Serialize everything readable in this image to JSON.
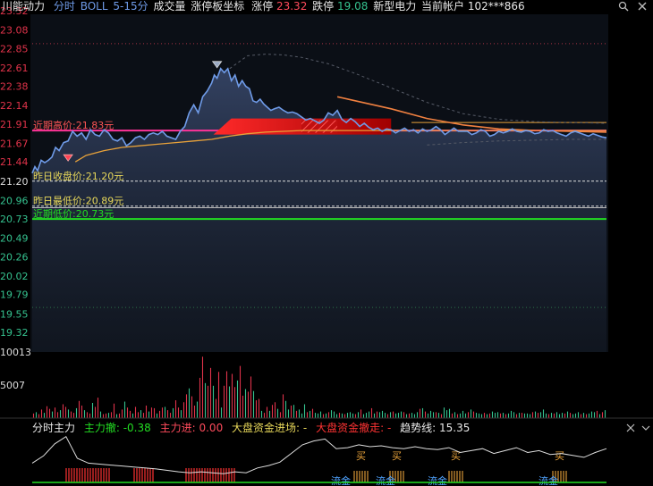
{
  "header": {
    "stock": "川能动力",
    "mode": "分时",
    "indicator": "BOLL",
    "period": "5-15分",
    "volume_label": "成交量",
    "limit_tool": "涨停板坐标",
    "limit_up_label": "涨停",
    "limit_up_value": "23.32",
    "limit_down_label": "跌停",
    "limit_down_value": "19.08",
    "sector": "新型电力",
    "account": "当前帐户 102***866"
  },
  "colors": {
    "bg": "#000000",
    "price": "#6f9be8",
    "avg": "#e8a23a",
    "up": "#e0334a",
    "down": "#35c28f",
    "yellow": "#e8d85a",
    "green": "#22dd22",
    "pink": "#ff3399",
    "white": "#dddddd"
  },
  "chart_data": {
    "type": "line",
    "y_ticks": [
      {
        "v": 23.32,
        "label": "23.32"
      },
      {
        "v": 23.08,
        "label": "23.08"
      },
      {
        "v": 22.85,
        "label": "22.85"
      },
      {
        "v": 22.61,
        "label": "22.61"
      },
      {
        "v": 22.38,
        "label": "22.38"
      },
      {
        "v": 22.14,
        "label": "22.14"
      },
      {
        "v": 21.91,
        "label": "21.91"
      },
      {
        "v": 21.67,
        "label": "21.67"
      },
      {
        "v": 21.44,
        "label": "21.44"
      },
      {
        "v": 21.2,
        "label": "21.20"
      },
      {
        "v": 20.96,
        "label": "20.96"
      },
      {
        "v": 20.73,
        "label": "20.73"
      },
      {
        "v": 20.49,
        "label": "20.49"
      },
      {
        "v": 20.26,
        "label": "20.26"
      },
      {
        "v": 20.02,
        "label": "20.02"
      },
      {
        "v": 19.79,
        "label": "19.79"
      },
      {
        "v": 19.55,
        "label": "19.55"
      },
      {
        "v": 19.32,
        "label": "19.32"
      }
    ],
    "ylim": [
      19.32,
      23.32
    ],
    "hlines": [
      {
        "label": "近期高价:21.83元",
        "value": 21.83,
        "color": "#ff3399"
      },
      {
        "label": "昨日收盘价:21.20元",
        "value": 21.2,
        "color": "#dddddd"
      },
      {
        "label": "昨日最低价:20.89元",
        "value": 20.89,
        "color": "#dddddd"
      },
      {
        "label": "近期低价:20.73元",
        "value": 20.73,
        "color": "#22dd22"
      }
    ],
    "series": [
      {
        "name": "price",
        "x": [
          0,
          3,
          6,
          10,
          14,
          18,
          22,
          26,
          30,
          35,
          40,
          45,
          50,
          55,
          60,
          65,
          70,
          75,
          80,
          85,
          90,
          95,
          100,
          105,
          110,
          115,
          120,
          125,
          130,
          135,
          140,
          145,
          150,
          155,
          160,
          165,
          170,
          175,
          180,
          185,
          190,
          195,
          200,
          203,
          206,
          210,
          214,
          218,
          222,
          226,
          230,
          234,
          238,
          242,
          246,
          250,
          254,
          258,
          262,
          266,
          270,
          275,
          280,
          285,
          290,
          295,
          300,
          305,
          310,
          315,
          320,
          325,
          330,
          335,
          340,
          345,
          350,
          355,
          360,
          365,
          370,
          375,
          380,
          385,
          390,
          395,
          400,
          405,
          410,
          415,
          420,
          425,
          430,
          435,
          440,
          445,
          450,
          455,
          460,
          465,
          470,
          475,
          480,
          485,
          490,
          495,
          500,
          505,
          510,
          515,
          520,
          525,
          530,
          535,
          540,
          545,
          550,
          555,
          560,
          565,
          570,
          575,
          580,
          585,
          590,
          595,
          600,
          605,
          610,
          615,
          620,
          625,
          630,
          635,
          640
        ],
        "values": [
          21.3,
          21.38,
          21.33,
          21.46,
          21.43,
          21.46,
          21.5,
          21.62,
          21.58,
          21.68,
          21.7,
          21.82,
          21.76,
          21.8,
          21.72,
          21.84,
          21.78,
          21.76,
          21.84,
          21.8,
          21.72,
          21.7,
          21.74,
          21.64,
          21.68,
          21.74,
          21.76,
          21.72,
          21.78,
          21.8,
          21.78,
          21.82,
          21.76,
          21.74,
          21.72,
          21.82,
          21.88,
          22.05,
          22.15,
          22.05,
          22.25,
          22.32,
          22.42,
          22.52,
          22.48,
          22.6,
          22.55,
          22.6,
          22.45,
          22.52,
          22.38,
          22.45,
          22.38,
          22.35,
          22.2,
          22.18,
          22.22,
          22.16,
          22.12,
          22.08,
          22.1,
          22.12,
          22.08,
          22.05,
          22.06,
          22.04,
          22.0,
          21.96,
          21.98,
          21.95,
          21.92,
          21.96,
          22.05,
          22.02,
          22.08,
          21.97,
          21.93,
          21.98,
          21.94,
          21.88,
          21.92,
          21.87,
          21.84,
          21.86,
          21.82,
          21.85,
          21.84,
          21.8,
          21.83,
          21.86,
          21.82,
          21.84,
          21.8,
          21.85,
          21.82,
          21.84,
          21.88,
          21.84,
          21.78,
          21.82,
          21.86,
          21.82,
          21.82,
          21.82,
          21.78,
          21.8,
          21.84,
          21.82,
          21.76,
          21.78,
          21.82,
          21.8,
          21.82,
          21.85,
          21.82,
          21.81,
          21.83,
          21.82,
          21.79,
          21.8,
          21.84,
          21.82,
          21.83,
          21.8,
          21.78,
          21.76,
          21.8,
          21.82,
          21.8,
          21.78,
          21.76,
          21.79,
          21.77,
          21.75,
          21.74
        ]
      },
      {
        "name": "avg",
        "x": [
          48,
          60,
          80,
          100,
          120,
          140,
          160,
          180,
          200,
          220,
          240,
          260,
          280,
          300,
          330,
          360,
          400,
          440,
          480,
          520,
          560,
          600,
          640
        ],
        "values": [
          21.44,
          21.52,
          21.58,
          21.62,
          21.64,
          21.66,
          21.68,
          21.7,
          21.72,
          21.76,
          21.79,
          21.81,
          21.82,
          21.83,
          21.83,
          21.83,
          21.83,
          21.83,
          21.83,
          21.83,
          21.83,
          21.83,
          21.83
        ]
      },
      {
        "name": "boll_up",
        "x": [
          220,
          240,
          260,
          280,
          300,
          330,
          360,
          400,
          440,
          480,
          520,
          560,
          600,
          640
        ],
        "values": [
          22.6,
          22.76,
          22.78,
          22.77,
          22.74,
          22.66,
          22.54,
          22.36,
          22.18,
          22.04,
          21.97,
          21.94,
          21.93,
          21.92
        ]
      },
      {
        "name": "boll_mid",
        "x": [
          340,
          360,
          400,
          440,
          480,
          520,
          560,
          600,
          640
        ],
        "values": [
          22.25,
          22.2,
          22.1,
          21.98,
          21.9,
          21.85,
          21.83,
          21.82,
          21.81
        ]
      },
      {
        "name": "boll_low",
        "x": [
          440,
          480,
          520,
          560,
          600,
          640
        ],
        "values": [
          21.65,
          21.68,
          21.7,
          21.71,
          21.72,
          21.72
        ]
      }
    ],
    "volume": {
      "y_ticks": [
        {
          "v": 10013,
          "label": "10013"
        },
        {
          "v": 5007,
          "label": "5007"
        }
      ],
      "ymax": 10013,
      "values": [
        700,
        900,
        600,
        1300,
        800,
        1800,
        1400,
        1000,
        1600,
        900,
        1200,
        2100,
        1700,
        1300,
        1000,
        800,
        1500,
        2600,
        1900,
        1200,
        900,
        700,
        2300,
        1700,
        3100,
        1000,
        600,
        700,
        800,
        900,
        2200,
        600,
        700,
        1300,
        2500,
        1600,
        1100,
        700,
        1700,
        900,
        1200,
        800,
        1900,
        1000,
        1600,
        1500,
        700,
        1100,
        1600,
        1700,
        1200,
        800,
        1500,
        2700,
        1600,
        1200,
        2400,
        3600,
        4500,
        3300,
        1900,
        2500,
        6100,
        9300,
        5300,
        4900,
        7600,
        4900,
        2900,
        7000,
        1600,
        4900,
        7100,
        4800,
        6700,
        4700,
        5700,
        7900,
        3400,
        4400,
        4000,
        6300,
        4100,
        2700,
        2900,
        1100,
        800,
        1700,
        1100,
        2000,
        2400,
        1400,
        900,
        3600,
        2600,
        1300,
        1900,
        2000,
        1100,
        1300,
        700,
        2100,
        900,
        1100,
        1400,
        800,
        700,
        1000,
        600,
        700,
        900,
        1200,
        1000,
        600,
        800,
        700,
        600,
        800,
        900,
        700,
        600,
        900,
        1300,
        600,
        800,
        1000,
        1500,
        700,
        1000,
        900,
        1100,
        800,
        600,
        900,
        1000,
        700,
        800,
        1000,
        900,
        600,
        700,
        800,
        600,
        900,
        1400,
        1500,
        1000,
        700,
        1100,
        900,
        900,
        800,
        600,
        1600,
        1200,
        1400,
        700,
        900,
        600,
        700,
        1100,
        700,
        900,
        1300,
        1000,
        800,
        700,
        600,
        800,
        600,
        700,
        1000,
        800,
        900,
        700,
        800,
        600,
        700,
        1100,
        900,
        600,
        800,
        800,
        700,
        700,
        600,
        900,
        1000,
        800,
        900,
        1300,
        700,
        600,
        800,
        700,
        900,
        600,
        800,
        700,
        1000,
        800,
        600,
        700,
        900,
        600,
        800,
        600,
        700,
        1000,
        900,
        1100,
        600,
        900,
        1200
      ]
    }
  },
  "sub": {
    "title": "分时主力",
    "main_out_label": "主力撤",
    "main_out_value": "-0.38",
    "main_in_label": "主力进",
    "main_in_value": "0.00",
    "big_in_label": "大盘资金进场",
    "big_in_value": "-",
    "big_out_label": "大盘资金撤走",
    "big_out_value": "-",
    "trend_label": "趋势线",
    "trend_value": "15.35",
    "buy_mark": "买",
    "buy_x": [
      404,
      444,
      510,
      626
    ],
    "lime_mark": "流金",
    "lime_x": [
      380,
      430,
      488,
      612
    ],
    "trend_line": [
      0.4,
      0.55,
      0.8,
      0.95,
      0.5,
      0.4,
      0.38,
      0.36,
      0.34,
      0.32,
      0.3,
      0.28,
      0.25,
      0.22,
      0.2,
      0.22,
      0.2,
      0.18,
      0.22,
      0.2,
      0.3,
      0.35,
      0.42,
      0.6,
      0.78,
      0.86,
      0.9,
      0.7,
      0.72,
      0.78,
      0.74,
      0.76,
      0.72,
      0.7,
      0.74,
      0.7,
      0.68,
      0.72,
      0.62,
      0.66,
      0.7,
      0.6,
      0.66,
      0.72,
      0.62,
      0.66,
      0.58,
      0.6,
      0.56,
      0.52,
      0.62,
      0.7
    ]
  }
}
